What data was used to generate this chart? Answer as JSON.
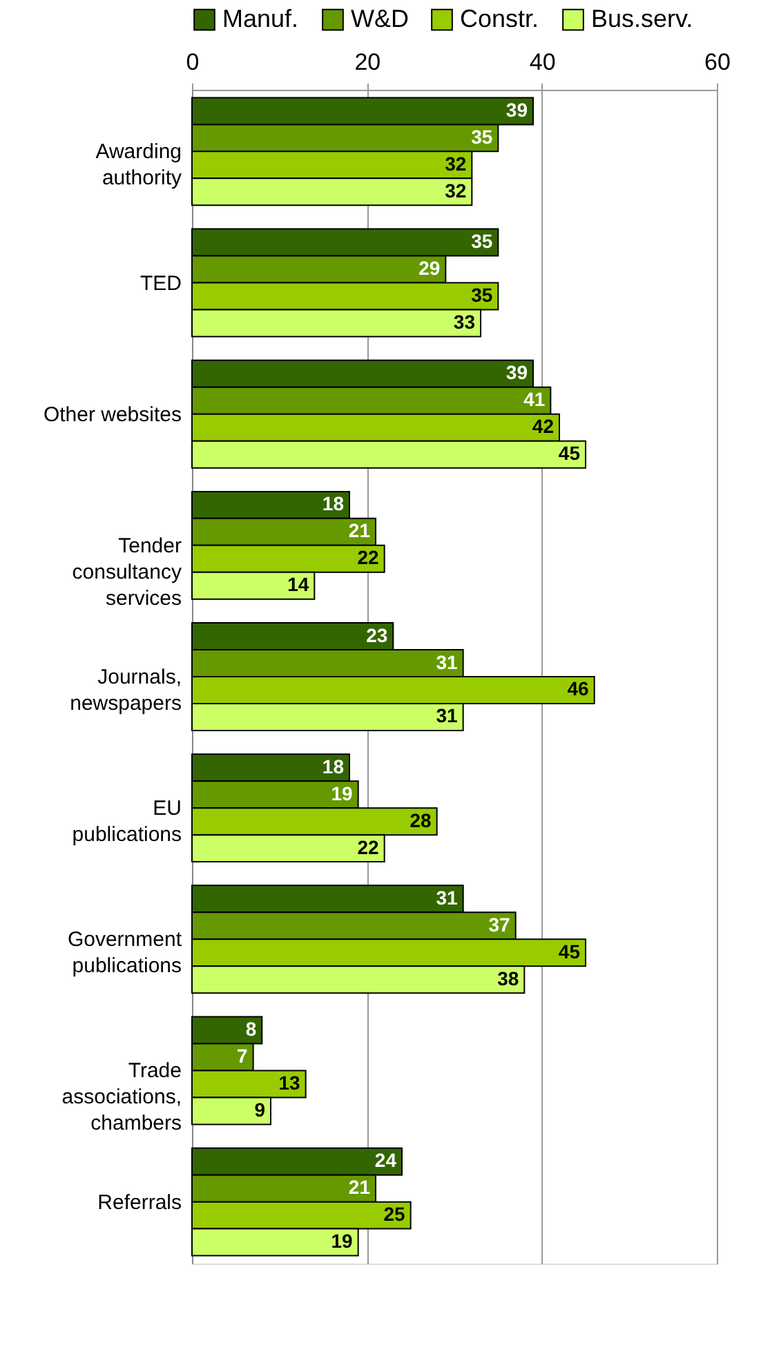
{
  "chart_data": {
    "type": "bar",
    "orientation": "horizontal",
    "categories": [
      "Awarding authority",
      "TED",
      "Other websites",
      "Tender consultancy services",
      "Journals, newspapers",
      "EU publications",
      "Government publications",
      "Trade associations, chambers",
      "Referrals"
    ],
    "series": [
      {
        "name": "Manuf.",
        "color": "#336600",
        "values": [
          39,
          35,
          39,
          18,
          23,
          18,
          31,
          8,
          24
        ]
      },
      {
        "name": "W&D",
        "color": "#669900",
        "values": [
          35,
          29,
          41,
          21,
          31,
          19,
          37,
          7,
          21
        ]
      },
      {
        "name": "Constr.",
        "color": "#99cc00",
        "values": [
          32,
          35,
          42,
          22,
          46,
          28,
          45,
          13,
          25
        ]
      },
      {
        "name": "Bus.serv.",
        "color": "#ccff66",
        "values": [
          32,
          33,
          45,
          14,
          31,
          22,
          38,
          9,
          19
        ]
      }
    ],
    "xlim": [
      0,
      60
    ],
    "xticks": [
      0,
      20,
      40,
      60
    ],
    "grid": "x",
    "legend": "top",
    "data_labels": true
  }
}
